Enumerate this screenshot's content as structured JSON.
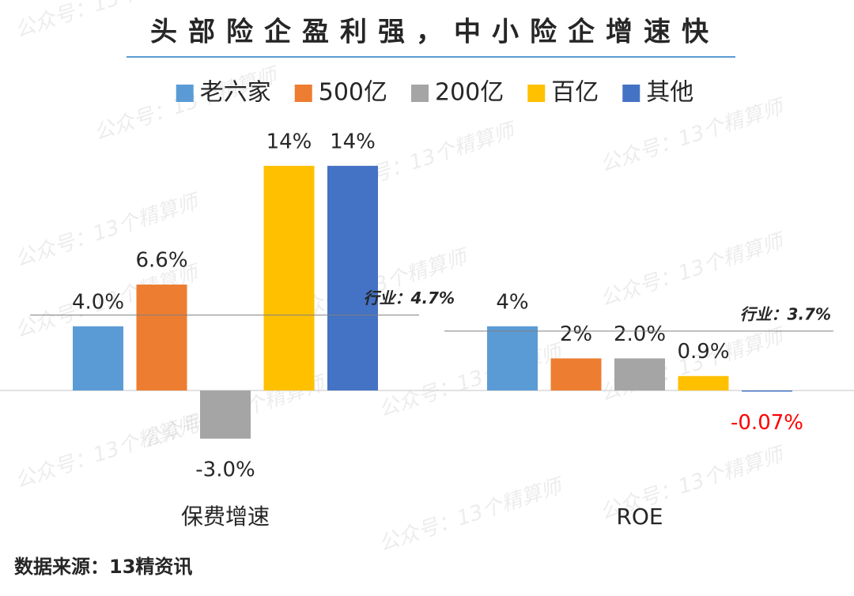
{
  "chart_data": {
    "type": "bar",
    "title": "头部险企盈利强，中小险企增速快",
    "categories": [
      "保费增速",
      "ROE"
    ],
    "series": [
      {
        "name": "老六家",
        "color": "#5b9bd5",
        "values": [
          4.0,
          4
        ],
        "value_labels": [
          "4.0%",
          "4%"
        ]
      },
      {
        "name": "500亿",
        "color": "#ed7d31",
        "values": [
          6.6,
          2
        ],
        "value_labels": [
          "6.6%",
          "2%"
        ]
      },
      {
        "name": "200亿",
        "color": "#a5a5a5",
        "values": [
          -3.0,
          2.0
        ],
        "value_labels": [
          "-3.0%",
          "2.0%"
        ]
      },
      {
        "name": "百亿",
        "color": "#ffc000",
        "values": [
          14,
          0.9
        ],
        "value_labels": [
          "14%",
          "0.9%"
        ]
      },
      {
        "name": "其他",
        "color": "#4472c4",
        "values": [
          14,
          -0.07
        ],
        "value_labels": [
          "14%",
          "-0.07%"
        ],
        "value_label_colors": [
          "#262626",
          "#ff0000"
        ]
      }
    ],
    "ylim": [
      -5,
      16
    ],
    "legend": "top",
    "reference_lines": [
      {
        "category": 0,
        "value": 4.7,
        "label": "行业：4.7%"
      },
      {
        "category": 1,
        "value": 3.7,
        "label": "行业：3.7%"
      }
    ],
    "source": "数据来源：13精资讯",
    "watermark": "公众号：13个精算师"
  }
}
